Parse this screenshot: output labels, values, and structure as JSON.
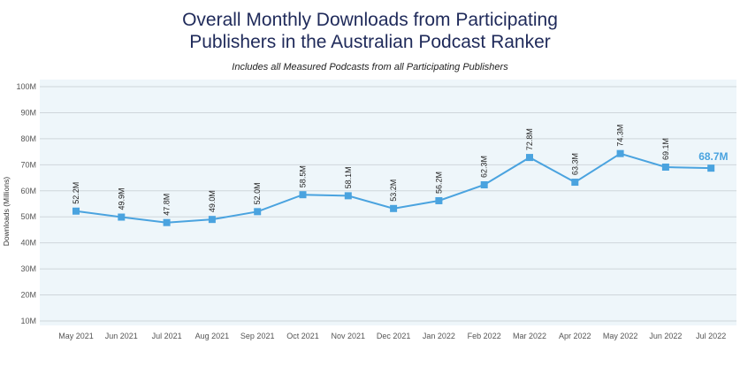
{
  "title_line1": "Overall Monthly Downloads from Participating",
  "title_line2": "Publishers in the Australian Podcast Ranker",
  "subtitle": "Includes all Measured Podcasts from all Participating Publishers",
  "colors": {
    "line": "#4aa3df",
    "marker": "#4aa3df",
    "plot_bg": "#eef6fa",
    "grid": "#cfd6db",
    "last_label": "#4aa3df"
  },
  "chart_data": {
    "type": "line",
    "ylabel": "Downloads (Millions)",
    "xlabel": "",
    "ylim": [
      10,
      100
    ],
    "yticks": [
      "10M",
      "20M",
      "30M",
      "40M",
      "50M",
      "60M",
      "70M",
      "80M",
      "90M",
      "100M"
    ],
    "grid": true,
    "categories": [
      "May 2021",
      "Jun 2021",
      "Jul 2021",
      "Aug 2021",
      "Sep 2021",
      "Oct 2021",
      "Nov 2021",
      "Dec 2021",
      "Jan 2022",
      "Feb 2022",
      "Mar 2022",
      "Apr 2022",
      "May 2022",
      "Jun 2022",
      "Jul 2022"
    ],
    "values": [
      52.2,
      49.9,
      47.8,
      49.0,
      52.0,
      58.5,
      58.1,
      53.2,
      56.2,
      62.3,
      72.8,
      63.3,
      74.3,
      69.1,
      68.7
    ],
    "labels": [
      "52.2M",
      "49.9M",
      "47.8M",
      "49.0M",
      "52.0M",
      "58.5M",
      "58.1M",
      "53.2M",
      "56.2M",
      "62.3M",
      "72.8M",
      "63.3M",
      "74.3M",
      "69.1M",
      "68.7M"
    ]
  }
}
